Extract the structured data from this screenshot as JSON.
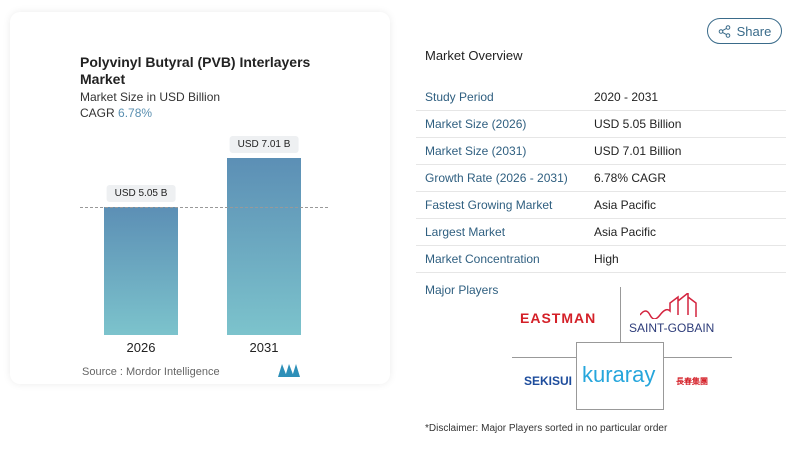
{
  "share_label": "Share",
  "chart": {
    "title": "Polyvinyl Butyral (PVB) Interlayers Market",
    "subtitle": "Market Size in USD Billion",
    "cagr_label": "CAGR",
    "cagr_value": "6.78%",
    "source": "Source :  Mordor Intelligence"
  },
  "chart_data": {
    "type": "bar",
    "categories": [
      "2026",
      "2031"
    ],
    "values": [
      5.05,
      7.01
    ],
    "data_labels": [
      "USD 5.05 B",
      "USD 7.01 B"
    ],
    "title": "Polyvinyl Butyral (PVB) Interlayers Market",
    "ylabel": "Market Size in USD Billion",
    "colors": [
      "#5c8fb5",
      "#7cc3cc"
    ]
  },
  "overview": {
    "title": "Market Overview",
    "rows": [
      {
        "k": "Study Period",
        "v": "2020 - 2031"
      },
      {
        "k": "Market Size (2026)",
        "v": "USD 5.05 Billion"
      },
      {
        "k": "Market Size (2031)",
        "v": "USD 7.01 Billion"
      },
      {
        "k": "Growth Rate (2026 - 2031)",
        "v": "6.78% CAGR"
      },
      {
        "k": "Fastest Growing Market",
        "v": "Asia Pacific"
      },
      {
        "k": "Largest Market",
        "v": "Asia Pacific"
      },
      {
        "k": "Market Concentration",
        "v": "High"
      }
    ]
  },
  "players": {
    "title": "Major Players",
    "logos": [
      "EASTMAN",
      "SAINT-GOBAIN",
      "SEKISUI",
      "kuraray",
      "長春集團"
    ]
  },
  "disclaimer": "*Disclaimer: Major Players sorted in no particular order"
}
